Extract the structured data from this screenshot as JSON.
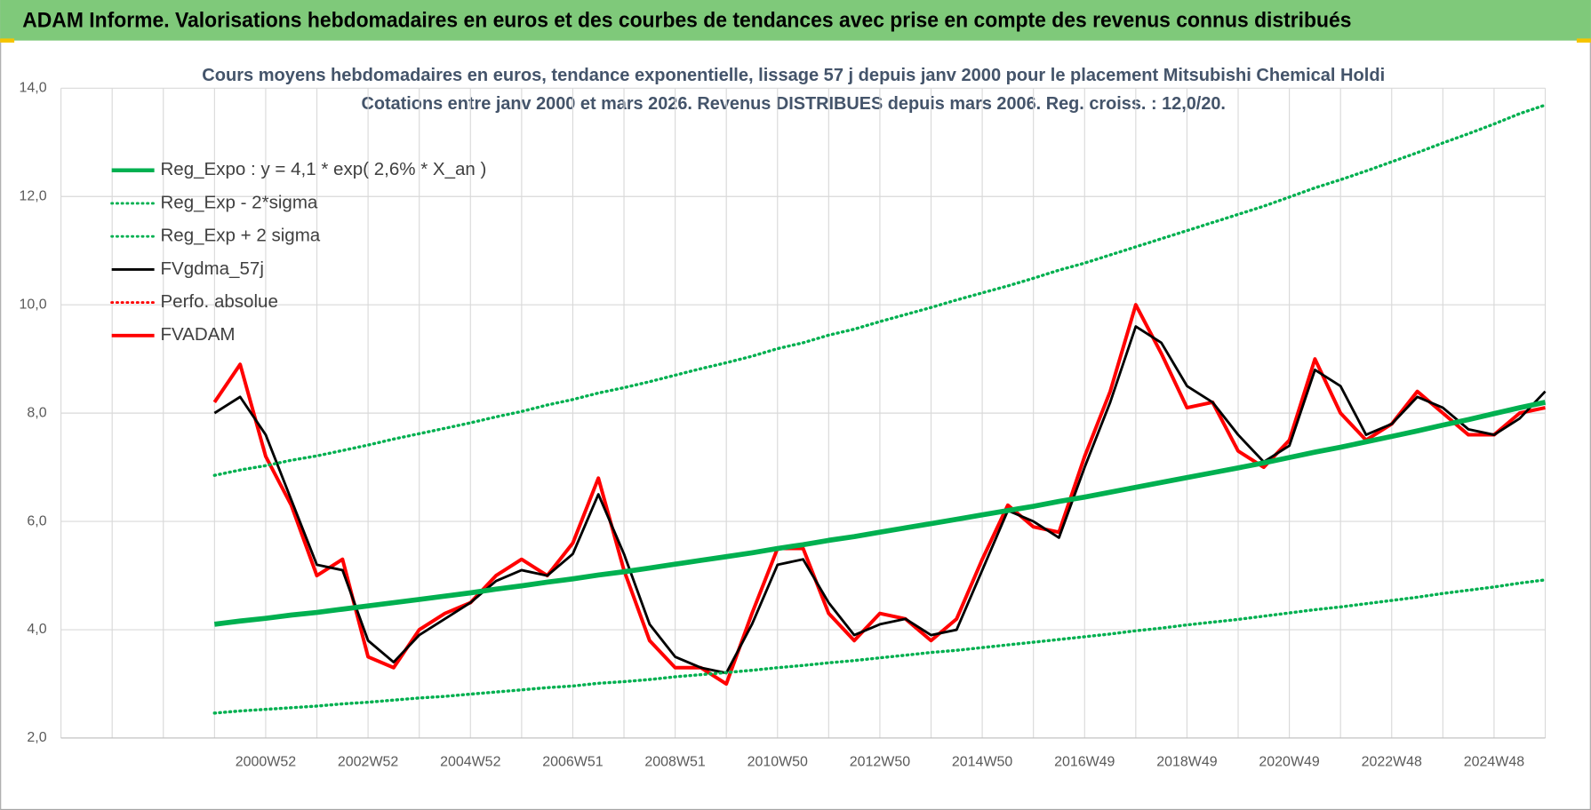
{
  "chart_data": {
    "type": "line",
    "header": "ADAM Informe. Valorisations hebdomadaires en euros et des courbes de tendances avec prise en compte des revenus connus distribués",
    "title": "Cours moyens hebdomadaires en euros, tendance exponentielle, lissage 57 j depuis janv 2000  pour le placement Mitsubishi Chemical Holdi",
    "subtitle": "Cotations entre janv 2000 et mars 2026. Revenus DISTRIBUES depuis mars 2006. Reg. croiss. : 12,0/20.",
    "categories": [
      null,
      null,
      null,
      null,
      null,
      null,
      null,
      null,
      "2000W52",
      null,
      null,
      null,
      "2002W52",
      null,
      null,
      null,
      "2004W52",
      null,
      null,
      null,
      "2006W51",
      null,
      null,
      null,
      "2008W51",
      null,
      null,
      null,
      "2010W50",
      null,
      null,
      null,
      "2012W50",
      null,
      null,
      null,
      "2014W50",
      null,
      null,
      null,
      "2016W49",
      null,
      null,
      null,
      "2018W49",
      null,
      null,
      null,
      "2020W49",
      null,
      null,
      null,
      "2022W48",
      null,
      null,
      null,
      "2024W48",
      null,
      null
    ],
    "ylim": [
      2,
      14
    ],
    "yticks": [
      {
        "value": 2,
        "label": "2,0"
      },
      {
        "value": 4,
        "label": "4,0"
      },
      {
        "value": 6,
        "label": "6,0"
      },
      {
        "value": 8,
        "label": "8,0"
      },
      {
        "value": 10,
        "label": "10,0"
      },
      {
        "value": 12,
        "label": "12,0"
      },
      {
        "value": 14,
        "label": "14,0"
      }
    ],
    "grid": true,
    "legend": "top-left",
    "series": [
      {
        "name": "Reg_Expo : y = 4,1 * exp( 2,6% *  X_an )",
        "color": "#00b050",
        "dash": false,
        "width": 5,
        "values": [
          null,
          null,
          null,
          null,
          null,
          null,
          4.1,
          4.16,
          4.21,
          4.27,
          4.32,
          4.38,
          4.44,
          4.5,
          4.56,
          4.62,
          4.68,
          4.75,
          4.81,
          4.88,
          4.94,
          5.01,
          5.07,
          5.14,
          5.21,
          5.28,
          5.35,
          5.42,
          5.5,
          5.57,
          5.65,
          5.72,
          5.8,
          5.88,
          5.96,
          6.04,
          6.12,
          6.2,
          6.28,
          6.37,
          6.45,
          6.54,
          6.63,
          6.72,
          6.81,
          6.9,
          6.99,
          7.08,
          7.18,
          7.28,
          7.37,
          7.47,
          7.57,
          7.67,
          7.78,
          7.88,
          7.99,
          8.1,
          8.2
        ]
      },
      {
        "name": "Reg_Exp - 2*sigma",
        "color": "#00b050",
        "dash": true,
        "width": 3,
        "values": [
          null,
          null,
          null,
          null,
          null,
          null,
          2.46,
          2.5,
          2.53,
          2.56,
          2.59,
          2.63,
          2.66,
          2.7,
          2.74,
          2.77,
          2.81,
          2.85,
          2.89,
          2.93,
          2.96,
          3.01,
          3.04,
          3.08,
          3.13,
          3.17,
          3.21,
          3.25,
          3.3,
          3.34,
          3.39,
          3.43,
          3.48,
          3.53,
          3.58,
          3.62,
          3.67,
          3.72,
          3.77,
          3.82,
          3.87,
          3.92,
          3.98,
          4.03,
          4.09,
          4.14,
          4.19,
          4.25,
          4.31,
          4.37,
          4.42,
          4.48,
          4.54,
          4.6,
          4.67,
          4.73,
          4.79,
          4.86,
          4.92
        ]
      },
      {
        "name": "Reg_Exp + 2 sigma",
        "color": "#00b050",
        "dash": true,
        "width": 3,
        "values": [
          null,
          null,
          null,
          null,
          null,
          null,
          6.85,
          6.95,
          7.03,
          7.13,
          7.21,
          7.31,
          7.41,
          7.52,
          7.62,
          7.72,
          7.82,
          7.93,
          8.03,
          8.15,
          8.25,
          8.37,
          8.47,
          8.58,
          8.7,
          8.82,
          8.93,
          9.05,
          9.19,
          9.3,
          9.44,
          9.55,
          9.69,
          9.82,
          9.95,
          10.09,
          10.22,
          10.35,
          10.49,
          10.64,
          10.77,
          10.92,
          11.07,
          11.22,
          11.37,
          11.52,
          11.67,
          11.82,
          11.99,
          12.16,
          12.31,
          12.47,
          12.64,
          12.81,
          12.99,
          13.16,
          13.34,
          13.53,
          13.69
        ]
      },
      {
        "name": "FVgdma_57j",
        "color": "#000000",
        "dash": false,
        "width": 2.5,
        "values": [
          null,
          null,
          null,
          null,
          null,
          null,
          8.0,
          8.3,
          7.6,
          6.4,
          5.2,
          5.1,
          3.8,
          3.4,
          3.9,
          4.2,
          4.5,
          4.9,
          5.1,
          5.0,
          5.4,
          6.5,
          5.4,
          4.1,
          3.5,
          3.3,
          3.2,
          4.1,
          5.2,
          5.3,
          4.5,
          3.9,
          4.1,
          4.2,
          3.9,
          4.0,
          5.1,
          6.2,
          6.0,
          5.7,
          7.0,
          8.2,
          9.6,
          9.3,
          8.5,
          8.2,
          7.6,
          7.1,
          7.4,
          8.8,
          8.5,
          7.6,
          7.8,
          8.3,
          8.1,
          7.7,
          7.6,
          7.9,
          8.4
        ]
      },
      {
        "name": "Perfo. absolue",
        "color": "#ff0000",
        "dash": true,
        "width": 2,
        "values": [
          null,
          null,
          null,
          null,
          null,
          null,
          null,
          null,
          null,
          null,
          null,
          null,
          null,
          null,
          null,
          null,
          null,
          null,
          null,
          null,
          null,
          null,
          null,
          null,
          null,
          null,
          null,
          null,
          null,
          null,
          null,
          null,
          null,
          null,
          null,
          null,
          null,
          null,
          null,
          null,
          null,
          null,
          null,
          null,
          null,
          null,
          null,
          null,
          null,
          null,
          null,
          null,
          null,
          null,
          null,
          null,
          null,
          null,
          null
        ]
      },
      {
        "name": "FVADAM",
        "color": "#ff0000",
        "dash": false,
        "width": 3.5,
        "values": [
          null,
          null,
          null,
          null,
          null,
          null,
          8.2,
          8.9,
          7.2,
          6.3,
          5.0,
          5.3,
          3.5,
          3.3,
          4.0,
          4.3,
          4.5,
          5.0,
          5.3,
          5.0,
          5.6,
          6.8,
          5.1,
          3.8,
          3.3,
          3.3,
          3.0,
          4.3,
          5.5,
          5.5,
          4.3,
          3.8,
          4.3,
          4.2,
          3.8,
          4.2,
          5.3,
          6.3,
          5.9,
          5.8,
          7.2,
          8.4,
          10.0,
          9.1,
          8.1,
          8.2,
          7.3,
          7.0,
          7.5,
          9.0,
          8.0,
          7.5,
          7.8,
          8.4,
          8.0,
          7.6,
          7.6,
          8.0,
          8.1
        ]
      }
    ]
  }
}
